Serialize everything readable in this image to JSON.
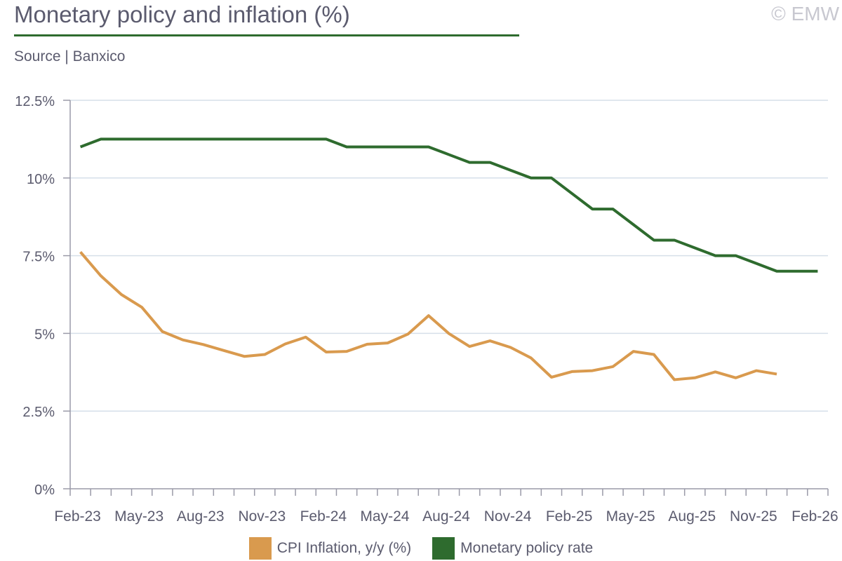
{
  "title": "Monetary policy and inflation (%)",
  "copyright": "© EMW",
  "source": "Source | Banxico",
  "chart_data": {
    "type": "line",
    "title": "Monetary policy and inflation (%)",
    "ylim": [
      0,
      12.5
    ],
    "yticks": [
      0,
      2.5,
      5,
      7.5,
      10,
      12.5
    ],
    "ytick_labels": [
      "0%",
      "2.5%",
      "5%",
      "7.5%",
      "10%",
      "12.5%"
    ],
    "xtick_labels": [
      "Feb-23",
      "May-23",
      "Aug-23",
      "Nov-23",
      "Feb-24",
      "May-24",
      "Aug-24",
      "Nov-24",
      "Feb-25",
      "May-25",
      "Aug-25",
      "Nov-25",
      "Feb-26"
    ],
    "months": 37,
    "grid": true,
    "legend_position": "bottom",
    "series": [
      {
        "name": "CPI Inflation, y/y (%)",
        "color": "#d99a4e",
        "values": [
          7.62,
          6.85,
          6.25,
          5.84,
          5.06,
          4.79,
          4.64,
          4.45,
          4.26,
          4.32,
          4.66,
          4.88,
          4.4,
          4.42,
          4.65,
          4.69,
          4.98,
          5.57,
          4.99,
          4.58,
          4.76,
          4.55,
          4.21,
          3.59,
          3.77,
          3.8,
          3.93,
          4.42,
          4.32,
          3.51,
          3.57,
          3.76,
          3.57,
          3.8,
          3.69
        ]
      },
      {
        "name": "Monetary policy rate",
        "color": "#2e6b2e",
        "values": [
          11.0,
          11.25,
          11.25,
          11.25,
          11.25,
          11.25,
          11.25,
          11.25,
          11.25,
          11.25,
          11.25,
          11.25,
          11.25,
          11.0,
          11.0,
          11.0,
          11.0,
          11.0,
          10.75,
          10.5,
          10.5,
          10.25,
          10.0,
          10.0,
          9.5,
          9.0,
          9.0,
          8.5,
          8.0,
          8.0,
          7.75,
          7.5,
          7.5,
          7.25,
          7.0,
          7.0,
          7.0
        ]
      }
    ]
  }
}
